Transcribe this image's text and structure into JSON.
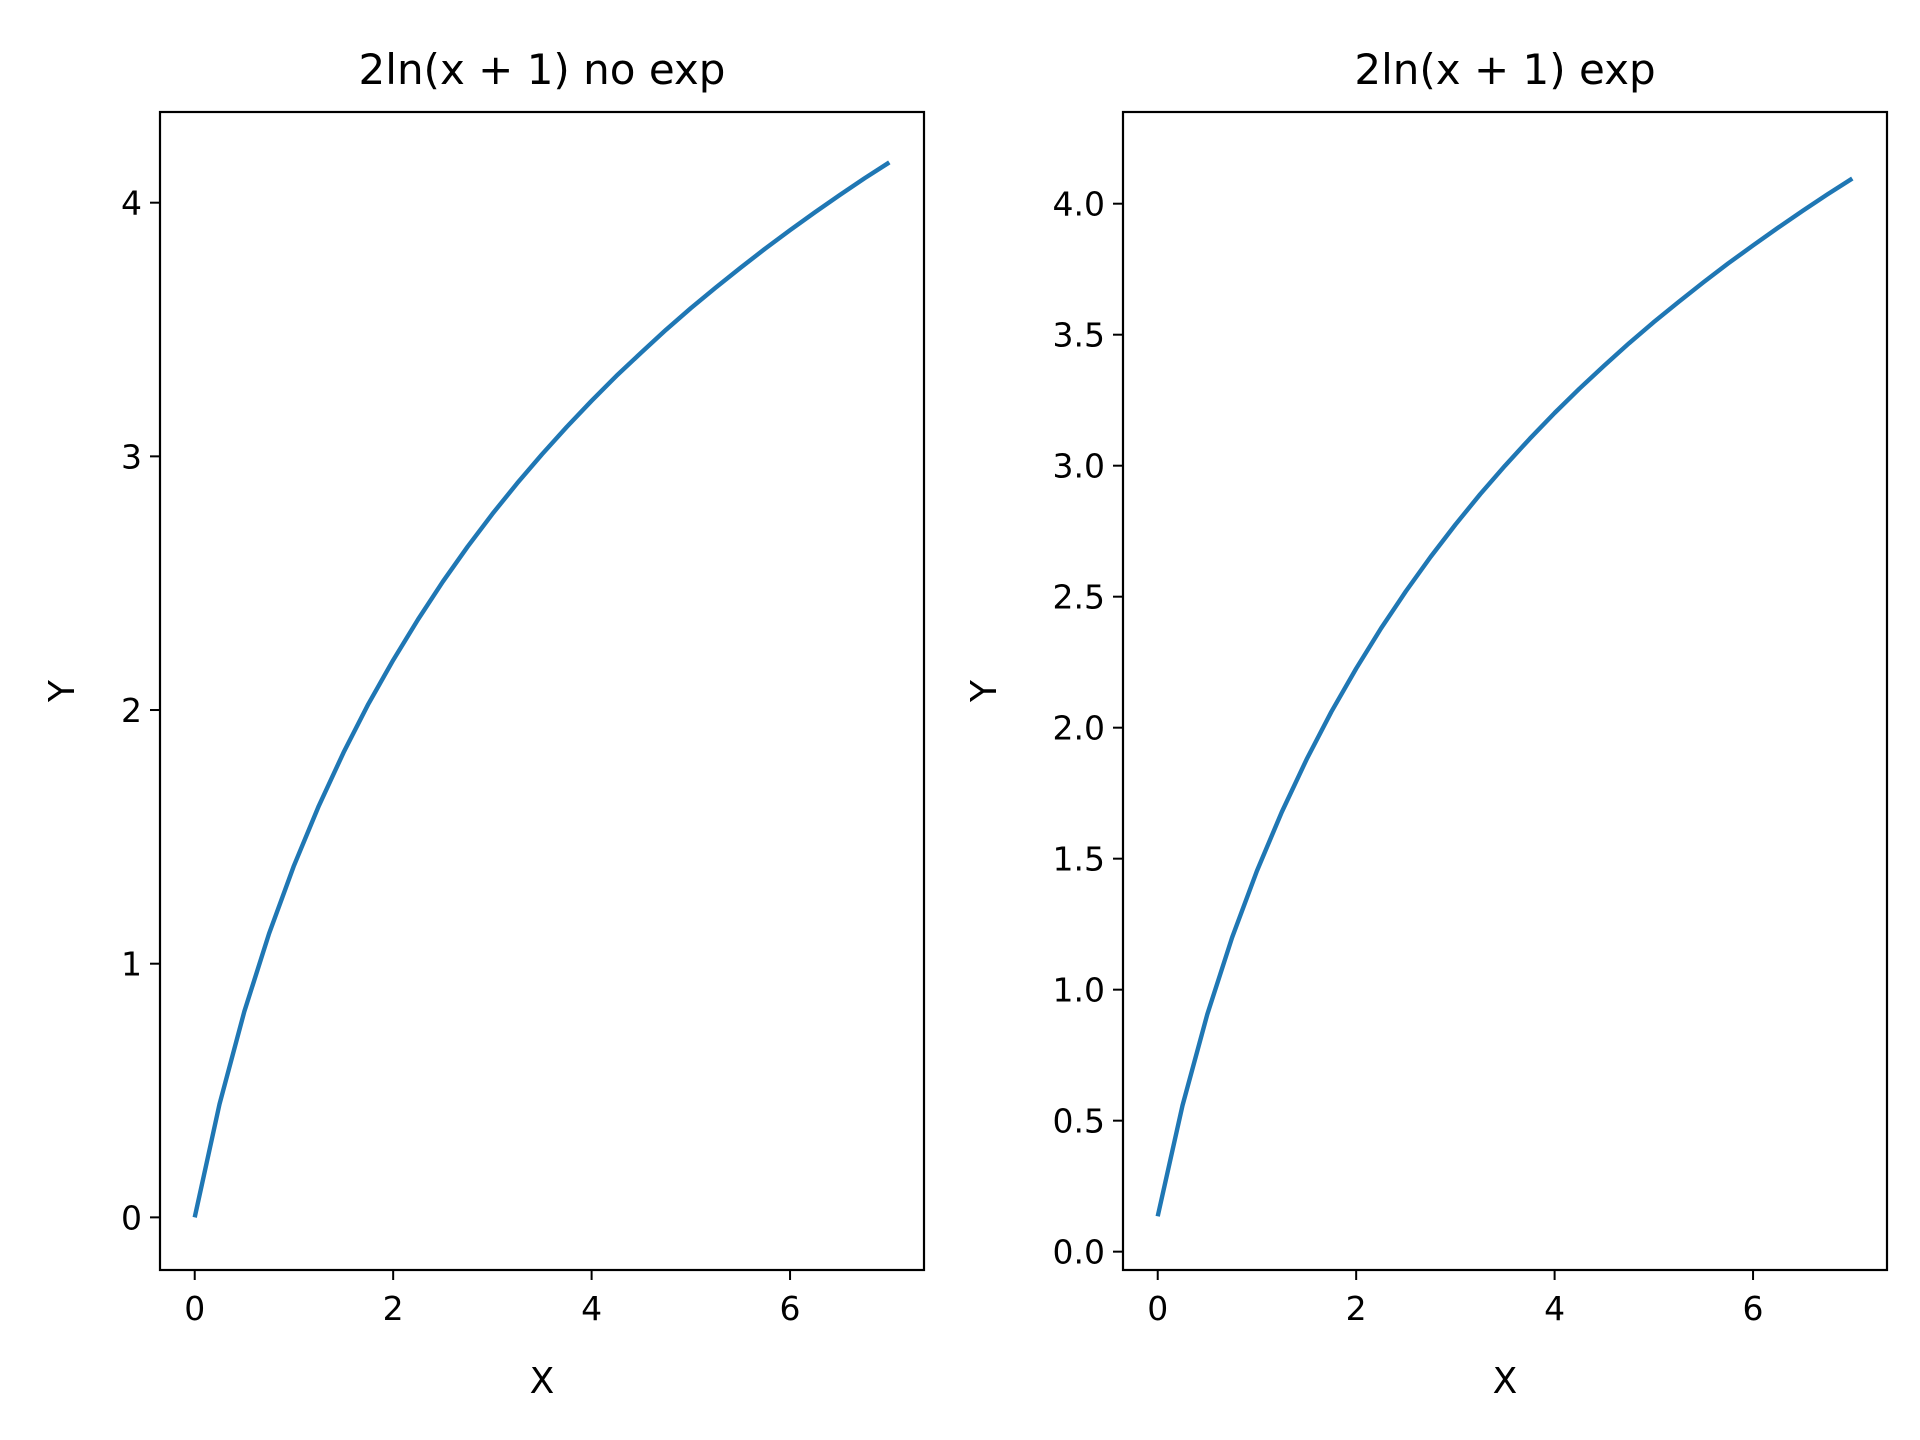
{
  "chart_data": [
    {
      "type": "line",
      "title": "2ln(x + 1) no exp",
      "xlabel": "X",
      "ylabel": "Y",
      "xlim": [
        -0.35,
        7.35
      ],
      "ylim": [
        -0.2075,
        4.3575
      ],
      "xticks": [
        0,
        2,
        4,
        6
      ],
      "xtick_labels": [
        "0",
        "2",
        "4",
        "6"
      ],
      "yticks": [
        0,
        1,
        2,
        3,
        4
      ],
      "ytick_labels": [
        "0",
        "1",
        "2",
        "3",
        "4"
      ],
      "grid": false,
      "colors": {
        "line": "#1f77b4"
      },
      "series": [
        {
          "x": [
            0,
            0.25,
            0.5,
            0.75,
            1,
            1.25,
            1.5,
            1.75,
            2,
            2.25,
            2.5,
            2.75,
            3,
            3.25,
            3.5,
            3.75,
            4,
            4.25,
            4.5,
            4.75,
            5,
            5.25,
            5.5,
            5.75,
            6,
            6.25,
            6.5,
            6.75,
            7
          ],
          "y": [
            0,
            0.446,
            0.811,
            1.119,
            1.386,
            1.622,
            1.833,
            2.024,
            2.197,
            2.357,
            2.506,
            2.644,
            2.773,
            2.894,
            3.008,
            3.116,
            3.219,
            3.317,
            3.409,
            3.499,
            3.584,
            3.665,
            3.743,
            3.819,
            3.892,
            3.962,
            4.03,
            4.096,
            4.159
          ]
        }
      ]
    },
    {
      "type": "line",
      "title": "2ln(x + 1) exp",
      "xlabel": "X",
      "ylabel": "Y",
      "xlim": [
        -0.35,
        7.35
      ],
      "ylim": [
        -0.07,
        4.35
      ],
      "xticks": [
        0,
        2,
        4,
        6
      ],
      "xtick_labels": [
        "0",
        "2",
        "4",
        "6"
      ],
      "yticks": [
        0,
        0.5,
        1,
        1.5,
        2,
        2.5,
        3,
        3.5,
        4
      ],
      "ytick_labels": [
        "0.0",
        "0.5",
        "1.0",
        "1.5",
        "2.0",
        "2.5",
        "3.0",
        "3.5",
        "4.0"
      ],
      "grid": false,
      "colors": {
        "line": "#1f77b4"
      },
      "series": [
        {
          "x": [
            0,
            0.25,
            0.5,
            0.75,
            1,
            1.25,
            1.5,
            1.75,
            2,
            2.25,
            2.5,
            2.75,
            3,
            3.25,
            3.5,
            3.75,
            4,
            4.25,
            4.5,
            4.75,
            5,
            5.25,
            5.5,
            5.75,
            6,
            6.25,
            6.5,
            6.75,
            7
          ],
          "y": [
            0.135,
            0.558,
            0.906,
            1.199,
            1.453,
            1.678,
            1.879,
            2.061,
            2.226,
            2.379,
            2.52,
            2.652,
            2.775,
            2.891,
            3.0,
            3.103,
            3.201,
            3.294,
            3.382,
            3.467,
            3.548,
            3.625,
            3.7,
            3.772,
            3.841,
            3.908,
            3.973,
            4.036,
            4.096
          ]
        }
      ]
    }
  ]
}
